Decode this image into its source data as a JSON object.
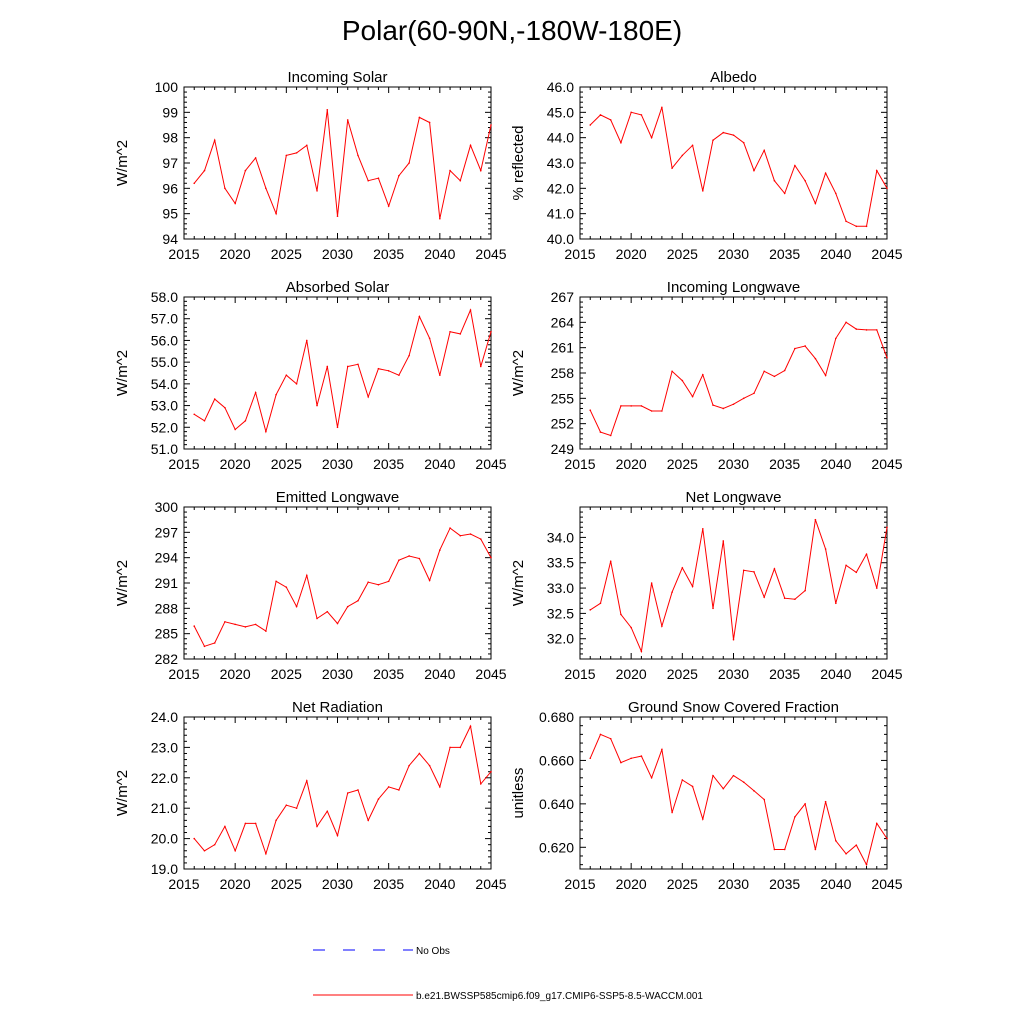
{
  "page": {
    "title": "Polar(60-90N,-180W-180E)"
  },
  "legend": {
    "obs_label": "No Obs",
    "obs_color": "#0000ff",
    "model_label": "b.e21.BWSSP585cmip6.f09_g17.CMIP6-SSP5-8.5-WACCM.001",
    "model_color": "#ff0000"
  },
  "chart_data": [
    {
      "type": "line",
      "title": "Incoming Solar",
      "ylabel": "W/m^2",
      "xlim": [
        2015,
        2045
      ],
      "ylim": [
        94,
        100
      ],
      "xticks": [
        2015,
        2020,
        2025,
        2030,
        2035,
        2040,
        2045
      ],
      "yticks": [
        "94",
        "95",
        "96",
        "97",
        "98",
        "99",
        "100"
      ],
      "x": [
        2016,
        2017,
        2018,
        2019,
        2020,
        2021,
        2022,
        2023,
        2024,
        2025,
        2026,
        2027,
        2028,
        2029,
        2030,
        2031,
        2032,
        2033,
        2034,
        2035,
        2036,
        2037,
        2038,
        2039,
        2040,
        2041,
        2042,
        2043,
        2044,
        2045
      ],
      "values": [
        96.2,
        96.7,
        97.9,
        96.0,
        95.4,
        96.7,
        97.2,
        96.0,
        95.0,
        97.3,
        97.4,
        97.7,
        95.9,
        99.1,
        94.9,
        98.7,
        97.3,
        96.3,
        96.4,
        95.3,
        96.5,
        97.0,
        98.8,
        98.6,
        94.8,
        96.7,
        96.3,
        97.7,
        96.7,
        98.5
      ]
    },
    {
      "type": "line",
      "title": "Albedo",
      "ylabel": "% reflected",
      "xlim": [
        2015,
        2045
      ],
      "ylim": [
        40,
        46
      ],
      "xticks": [
        2015,
        2020,
        2025,
        2030,
        2035,
        2040,
        2045
      ],
      "yticks": [
        "40.0",
        "41.0",
        "42.0",
        "43.0",
        "44.0",
        "45.0",
        "46.0"
      ],
      "x": [
        2016,
        2017,
        2018,
        2019,
        2020,
        2021,
        2022,
        2023,
        2024,
        2025,
        2026,
        2027,
        2028,
        2029,
        2030,
        2031,
        2032,
        2033,
        2034,
        2035,
        2036,
        2037,
        2038,
        2039,
        2040,
        2041,
        2042,
        2043,
        2044,
        2045
      ],
      "values": [
        44.5,
        44.9,
        44.7,
        43.8,
        45.0,
        44.9,
        44.0,
        45.2,
        42.8,
        43.3,
        43.7,
        41.9,
        43.9,
        44.2,
        44.1,
        43.8,
        42.7,
        43.5,
        42.3,
        41.8,
        42.9,
        42.3,
        41.4,
        42.6,
        41.8,
        40.7,
        40.5,
        40.5,
        42.7,
        42.0
      ]
    },
    {
      "type": "line",
      "title": "Absorbed Solar",
      "ylabel": "W/m^2",
      "xlim": [
        2015,
        2045
      ],
      "ylim": [
        51,
        58
      ],
      "xticks": [
        2015,
        2020,
        2025,
        2030,
        2035,
        2040,
        2045
      ],
      "yticks": [
        "51.0",
        "52.0",
        "53.0",
        "54.0",
        "55.0",
        "56.0",
        "57.0",
        "58.0"
      ],
      "x": [
        2016,
        2017,
        2018,
        2019,
        2020,
        2021,
        2022,
        2023,
        2024,
        2025,
        2026,
        2027,
        2028,
        2029,
        2030,
        2031,
        2032,
        2033,
        2034,
        2035,
        2036,
        2037,
        2038,
        2039,
        2040,
        2041,
        2042,
        2043,
        2044,
        2045
      ],
      "values": [
        52.6,
        52.3,
        53.3,
        52.9,
        51.9,
        52.3,
        53.6,
        51.8,
        53.5,
        54.4,
        54.0,
        56.0,
        53.0,
        54.8,
        52.0,
        54.8,
        54.9,
        53.4,
        54.7,
        54.6,
        54.4,
        55.3,
        57.1,
        56.1,
        54.4,
        56.4,
        56.3,
        57.4,
        54.8,
        56.4
      ]
    },
    {
      "type": "line",
      "title": "Incoming Longwave",
      "ylabel": "W/m^2",
      "xlim": [
        2015,
        2045
      ],
      "ylim": [
        249,
        267
      ],
      "xticks": [
        2015,
        2020,
        2025,
        2030,
        2035,
        2040,
        2045
      ],
      "yticks": [
        "249",
        "252",
        "255",
        "258",
        "261",
        "264",
        "267"
      ],
      "x": [
        2016,
        2017,
        2018,
        2019,
        2020,
        2021,
        2022,
        2023,
        2024,
        2025,
        2026,
        2027,
        2028,
        2029,
        2030,
        2031,
        2032,
        2033,
        2034,
        2035,
        2036,
        2037,
        2038,
        2039,
        2040,
        2041,
        2042,
        2043,
        2044,
        2045
      ],
      "values": [
        253.6,
        251.0,
        250.6,
        254.1,
        254.1,
        254.1,
        253.5,
        253.5,
        258.2,
        257.1,
        255.2,
        257.8,
        254.2,
        253.8,
        254.3,
        255.0,
        255.6,
        258.2,
        257.6,
        258.3,
        260.9,
        261.2,
        259.7,
        257.7,
        262.1,
        264.0,
        263.2,
        263.1,
        263.1,
        259.8
      ]
    },
    {
      "type": "line",
      "title": "Emitted Longwave",
      "ylabel": "W/m^2",
      "xlim": [
        2015,
        2045
      ],
      "ylim": [
        282,
        300
      ],
      "xticks": [
        2015,
        2020,
        2025,
        2030,
        2035,
        2040,
        2045
      ],
      "yticks": [
        "282",
        "285",
        "288",
        "291",
        "294",
        "297",
        "300"
      ],
      "x": [
        2016,
        2017,
        2018,
        2019,
        2020,
        2021,
        2022,
        2023,
        2024,
        2025,
        2026,
        2027,
        2028,
        2029,
        2030,
        2031,
        2032,
        2033,
        2034,
        2035,
        2036,
        2037,
        2038,
        2039,
        2040,
        2041,
        2042,
        2043,
        2044,
        2045
      ],
      "values": [
        285.9,
        283.5,
        283.9,
        286.4,
        286.1,
        285.8,
        286.1,
        285.3,
        291.2,
        290.5,
        288.2,
        291.9,
        286.8,
        287.6,
        286.2,
        288.2,
        288.9,
        291.1,
        290.8,
        291.2,
        293.7,
        294.2,
        293.9,
        291.3,
        294.9,
        297.5,
        296.6,
        296.8,
        296.2,
        294.0
      ]
    },
    {
      "type": "line",
      "title": "Net Longwave",
      "ylabel": "W/m^2",
      "xlim": [
        2015,
        2045
      ],
      "ylim": [
        31.6,
        34.6
      ],
      "xticks": [
        2015,
        2020,
        2025,
        2030,
        2035,
        2040,
        2045
      ],
      "yticks": [
        "32.0",
        "32.5",
        "33.0",
        "33.5",
        "34.0"
      ],
      "x": [
        2016,
        2017,
        2018,
        2019,
        2020,
        2021,
        2022,
        2023,
        2024,
        2025,
        2026,
        2027,
        2028,
        2029,
        2030,
        2031,
        2032,
        2033,
        2034,
        2035,
        2036,
        2037,
        2038,
        2039,
        2040,
        2041,
        2042,
        2043,
        2044,
        2045
      ],
      "values": [
        32.57,
        32.7,
        33.53,
        32.48,
        32.22,
        31.75,
        33.1,
        32.25,
        32.92,
        33.4,
        33.03,
        34.17,
        32.6,
        33.93,
        31.98,
        33.35,
        33.32,
        32.82,
        33.38,
        32.8,
        32.78,
        32.95,
        34.35,
        33.77,
        32.7,
        33.45,
        33.31,
        33.67,
        33.0,
        34.2
      ]
    },
    {
      "type": "line",
      "title": "Net Radiation",
      "ylabel": "W/m^2",
      "xlim": [
        2015,
        2045
      ],
      "ylim": [
        19,
        24
      ],
      "xticks": [
        2015,
        2020,
        2025,
        2030,
        2035,
        2040,
        2045
      ],
      "yticks": [
        "19.0",
        "20.0",
        "21.0",
        "22.0",
        "23.0",
        "24.0"
      ],
      "x": [
        2016,
        2017,
        2018,
        2019,
        2020,
        2021,
        2022,
        2023,
        2024,
        2025,
        2026,
        2027,
        2028,
        2029,
        2030,
        2031,
        2032,
        2033,
        2034,
        2035,
        2036,
        2037,
        2038,
        2039,
        2040,
        2041,
        2042,
        2043,
        2044,
        2045
      ],
      "values": [
        20.0,
        19.6,
        19.8,
        20.4,
        19.6,
        20.5,
        20.5,
        19.5,
        20.6,
        21.1,
        21.0,
        21.9,
        20.4,
        20.9,
        20.1,
        21.5,
        21.6,
        20.6,
        21.3,
        21.7,
        21.6,
        22.4,
        22.8,
        22.4,
        21.7,
        23.0,
        23.0,
        23.7,
        21.8,
        22.2
      ]
    },
    {
      "type": "line",
      "title": "Ground Snow Covered Fraction",
      "ylabel": "unitless",
      "xlim": [
        2015,
        2045
      ],
      "ylim": [
        0.61,
        0.68
      ],
      "xticks": [
        2015,
        2020,
        2025,
        2030,
        2035,
        2040,
        2045
      ],
      "yticks": [
        "0.620",
        "0.640",
        "0.660",
        "0.680"
      ],
      "x": [
        2016,
        2017,
        2018,
        2019,
        2020,
        2021,
        2022,
        2023,
        2024,
        2025,
        2026,
        2027,
        2028,
        2029,
        2030,
        2031,
        2032,
        2033,
        2034,
        2035,
        2036,
        2037,
        2038,
        2039,
        2040,
        2041,
        2042,
        2043,
        2044,
        2045
      ],
      "values": [
        0.661,
        0.672,
        0.67,
        0.659,
        0.661,
        0.662,
        0.652,
        0.665,
        0.636,
        0.651,
        0.648,
        0.633,
        0.653,
        0.647,
        0.653,
        0.65,
        0.646,
        0.642,
        0.619,
        0.619,
        0.634,
        0.64,
        0.619,
        0.641,
        0.623,
        0.617,
        0.621,
        0.612,
        0.631,
        0.624
      ]
    }
  ]
}
